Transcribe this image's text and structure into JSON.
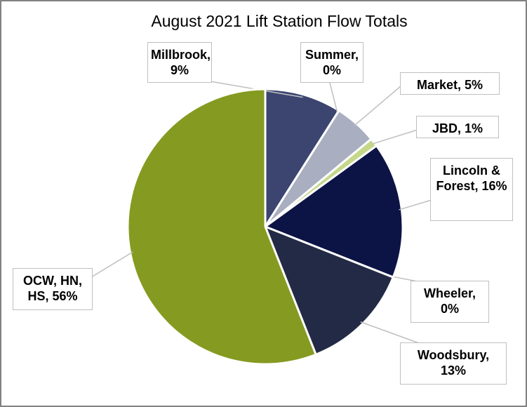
{
  "chart_data": {
    "type": "pie",
    "title": "August 2021 Lift Station Flow Totals",
    "categories": [
      "Millbrook",
      "Summer",
      "Market",
      "JBD",
      "Lincoln & Forest",
      "Wheeler",
      "Woodsbury",
      "OCW, HN, HS"
    ],
    "values": [
      9,
      0,
      5,
      1,
      16,
      0,
      13,
      56
    ],
    "value_labels": [
      "Millbrook, 9%",
      "Summer, 0%",
      "Market, 5%",
      "JBD, 1%",
      "Lincoln & Forest, 16%",
      "Wheeler, 0%",
      "Woodsbury, 13%",
      "OCW, HN, HS, 56%"
    ],
    "colors": [
      "#3b4570",
      "#d9d9d9",
      "#a9aec0",
      "#c5d88a",
      "#0c1445",
      "#5a6080",
      "#232a45",
      "#859a20"
    ]
  }
}
